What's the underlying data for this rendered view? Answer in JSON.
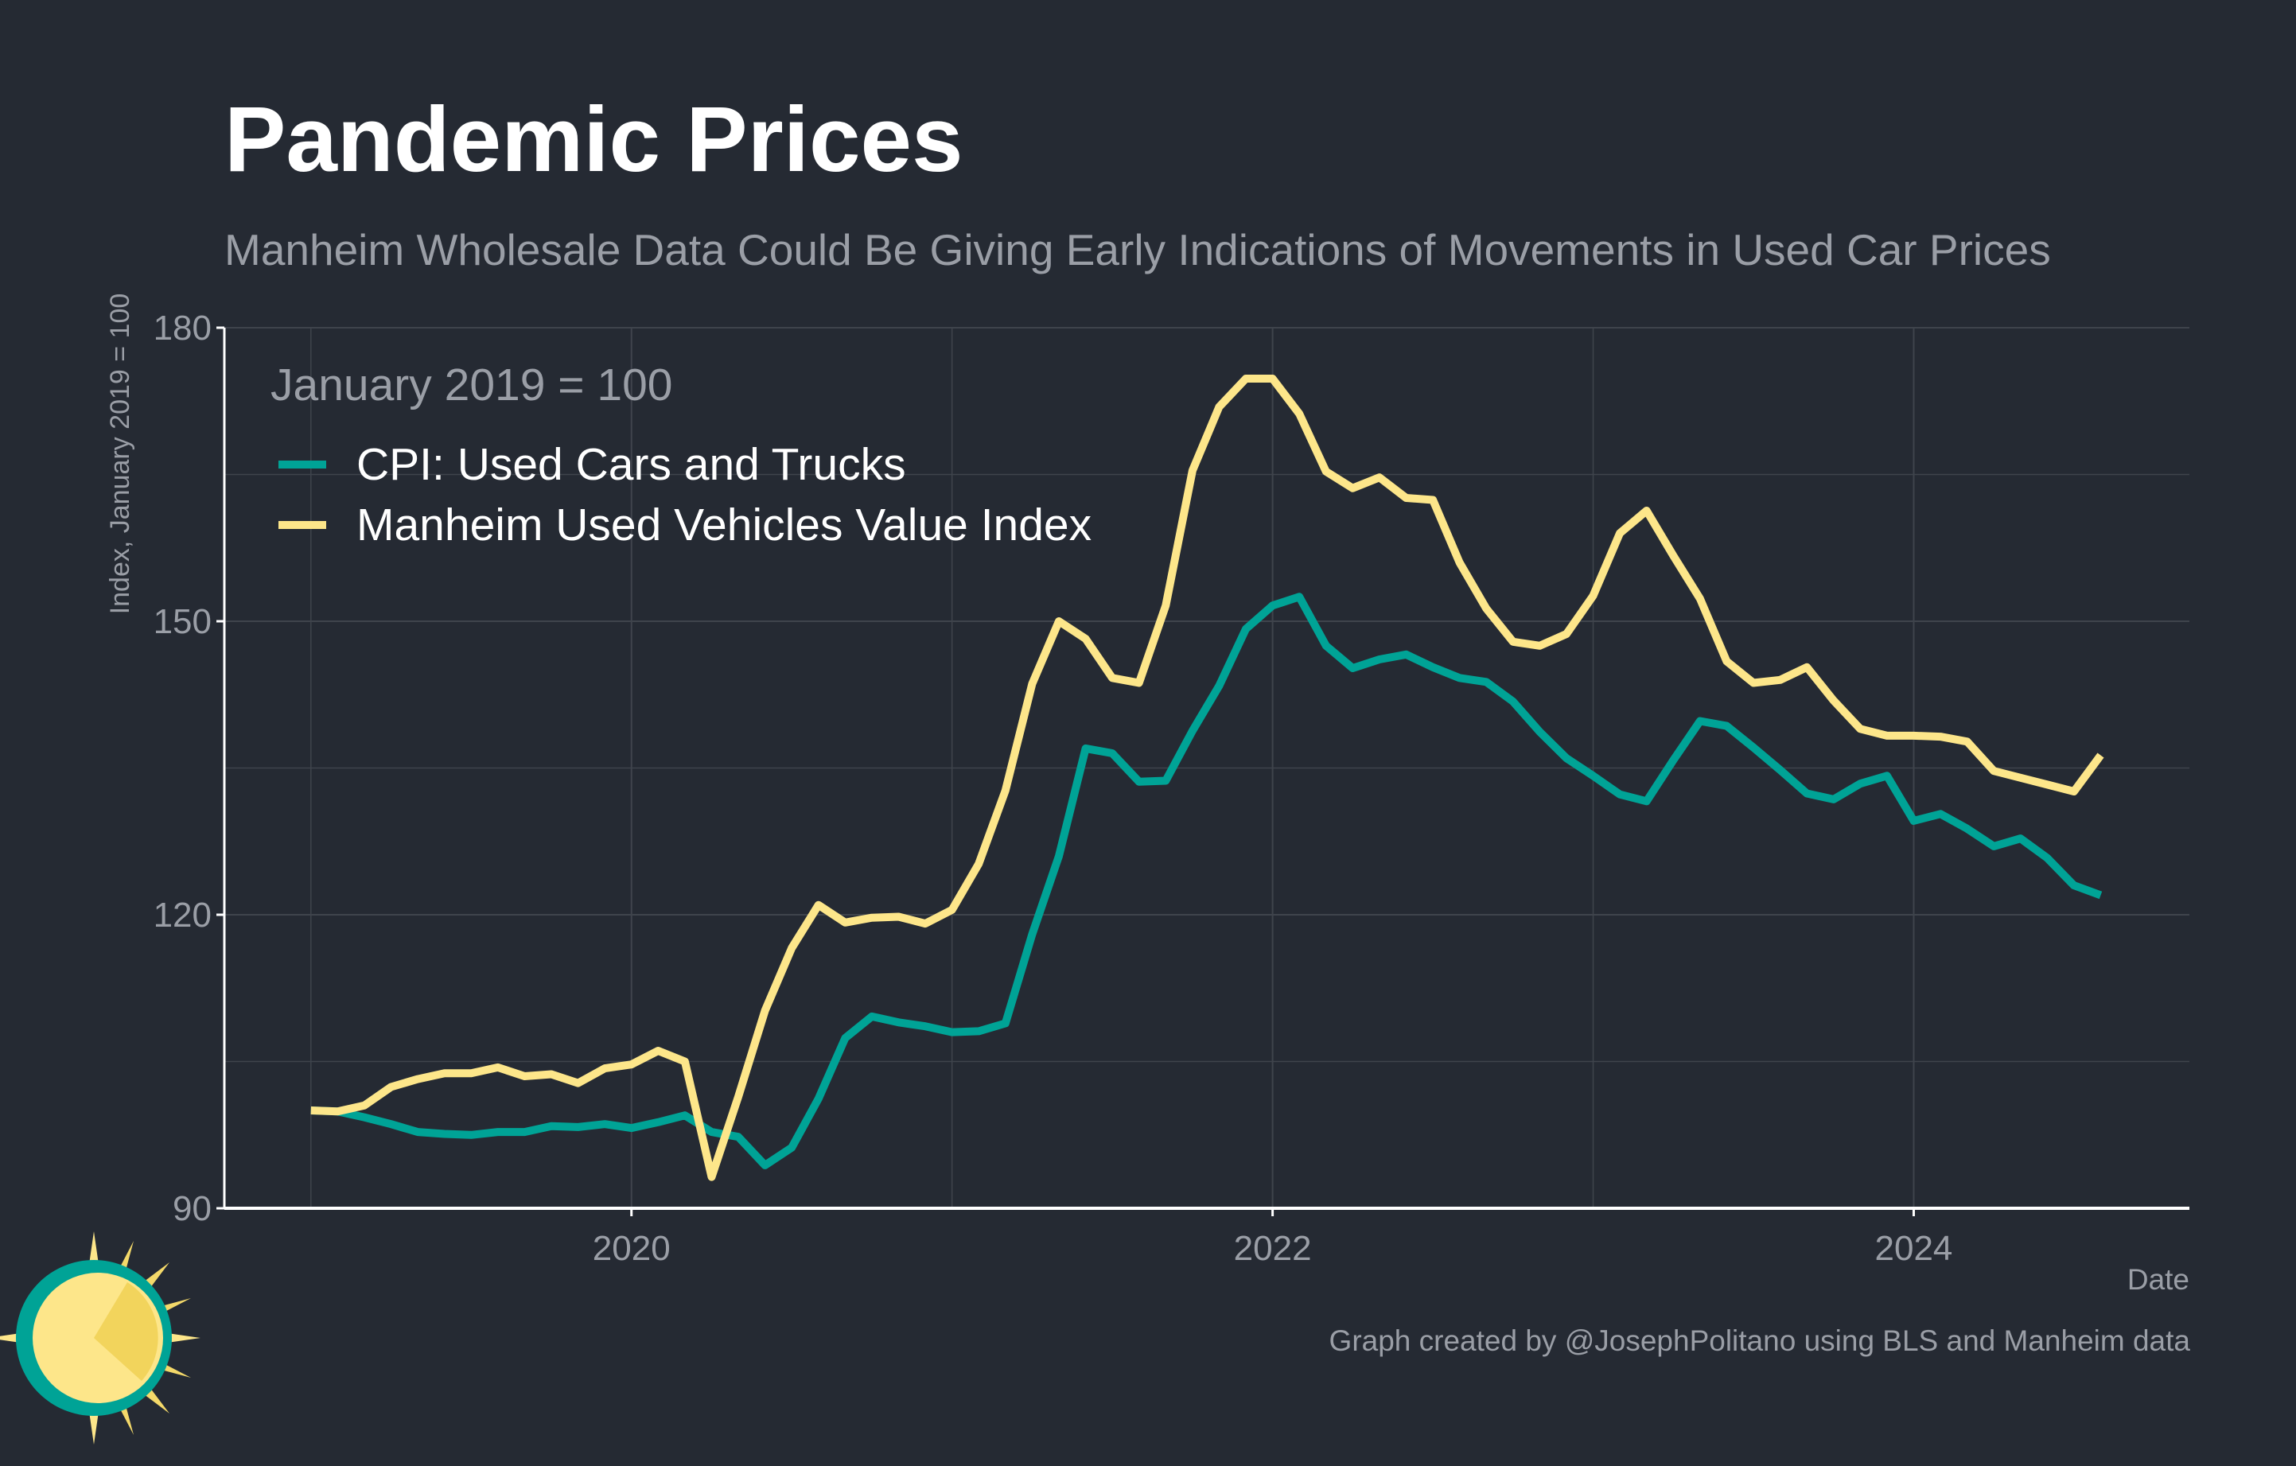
{
  "title": "Pandemic Prices",
  "subtitle": "Manheim Wholesale Data Could Be Giving Early Indications of Movements in Used Car Prices",
  "credit": "Graph created by @JosephPolitano using BLS and Manheim data",
  "colors": {
    "background": "#252a33",
    "cpi": "#00a396",
    "manheim": "#fde68a",
    "grid": "#3f444c",
    "axis": "#ffffff",
    "muted_text": "#9a9ea6"
  },
  "logo_icon": "sun-icon",
  "chart_data": {
    "type": "line",
    "xlabel": "Date",
    "ylabel": "Index, January 2019 = 100",
    "legend_title": "January 2019 = 100",
    "legend_position": "top-left",
    "grid": true,
    "xlim": [
      2018.73,
      2024.86
    ],
    "ylim": [
      90,
      180
    ],
    "x_ticks": [
      2020,
      2022,
      2024
    ],
    "x_tick_labels": [
      "2020",
      "2022",
      "2024"
    ],
    "y_ticks": [
      90,
      120,
      150,
      180
    ],
    "y_tick_labels": [
      "90",
      "120",
      "150",
      "180"
    ],
    "series": [
      {
        "name": "CPI: Used Cars and Trucks",
        "color": "#00a396",
        "start": "2019-01",
        "frequency": "monthly",
        "values": [
          100.0,
          99.9,
          99.3,
          98.6,
          97.8,
          97.6,
          97.5,
          97.8,
          97.8,
          98.4,
          98.3,
          98.6,
          98.2,
          98.8,
          99.5,
          97.8,
          97.3,
          94.4,
          96.2,
          101.2,
          107.4,
          109.6,
          109.0,
          108.6,
          108.0,
          108.1,
          108.9,
          118.0,
          126.0,
          137.0,
          136.5,
          133.6,
          133.7,
          138.8,
          143.4,
          149.2,
          151.6,
          152.5,
          147.5,
          145.2,
          146.1,
          146.6,
          145.3,
          144.2,
          143.8,
          141.8,
          138.7,
          136.0,
          134.2,
          132.3,
          131.6,
          135.8,
          139.8,
          139.3,
          137.1,
          134.8,
          132.4,
          131.8,
          133.4,
          134.2,
          129.6,
          130.3,
          128.8,
          127.0,
          127.8,
          125.8,
          123.0,
          122.0
        ]
      },
      {
        "name": "Manheim Used Vehicles Value Index",
        "color": "#fde68a",
        "start": "2019-01",
        "frequency": "monthly",
        "values": [
          100.0,
          99.9,
          100.5,
          102.4,
          103.2,
          103.8,
          103.8,
          104.4,
          103.5,
          103.7,
          102.8,
          104.3,
          104.7,
          106.1,
          105.0,
          93.2,
          101.4,
          110.2,
          116.6,
          121.0,
          119.2,
          119.7,
          119.8,
          119.1,
          120.5,
          125.2,
          132.7,
          143.6,
          150.0,
          148.2,
          144.2,
          143.7,
          151.6,
          165.4,
          171.9,
          174.8,
          174.8,
          171.2,
          165.3,
          163.6,
          164.7,
          162.6,
          162.4,
          156.0,
          151.3,
          147.9,
          147.5,
          148.7,
          152.6,
          159.0,
          161.3,
          156.7,
          152.3,
          145.9,
          143.7,
          144.0,
          145.3,
          141.9,
          139.0,
          138.3,
          138.3,
          138.2,
          137.7,
          134.7,
          134.0,
          133.3,
          132.6,
          136.3
        ]
      }
    ]
  }
}
